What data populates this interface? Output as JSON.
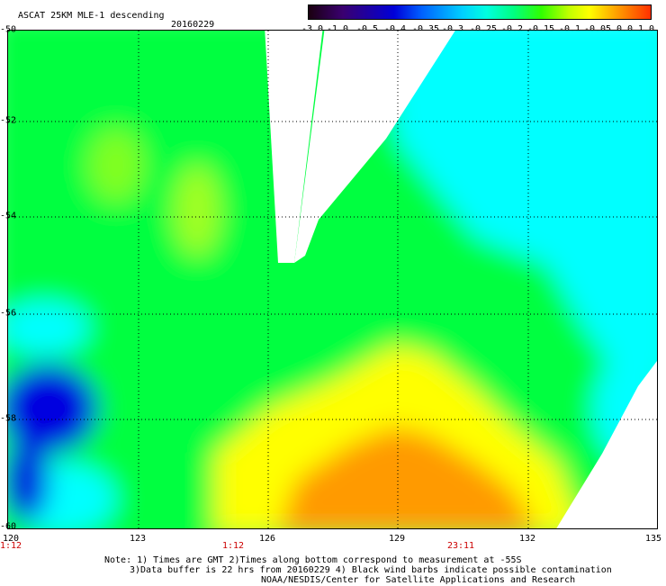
{
  "header": {
    "title": "ASCAT 25KM MLE-1 descending",
    "date": "20160229"
  },
  "colorbar": {
    "labels": [
      "-3.0",
      "-1.0",
      "-0.5",
      "-0.4",
      "-0.35",
      "-0.3",
      "-0.25",
      "-0.2",
      "-0.15",
      "-0.1",
      "-0.05",
      "0.0",
      "1.0"
    ]
  },
  "map": {
    "lat_labels": [
      "-50",
      "-52",
      "-54",
      "-56",
      "-58",
      "-60"
    ],
    "lon_labels": [
      "120",
      "123",
      "126",
      "129",
      "132",
      "135"
    ],
    "time_labels": [
      "1:12",
      "1:12",
      "23:11"
    ],
    "palette": {
      "blue": "#0000e0",
      "cyan": "#00ffff",
      "green": "#00ff40",
      "yellow": "#ffff00",
      "orange": "#ff9a00"
    }
  },
  "notes": {
    "line1": "Note: 1) Times are GMT 2)Times along bottom correspond to measurement at -55S",
    "line2": "3)Data buffer is 22 hrs from 20160229 4) Black wind barbs indicate possible contamination",
    "line3": "NOAA/NESDIS/Center for Satellite Applications and Research"
  }
}
